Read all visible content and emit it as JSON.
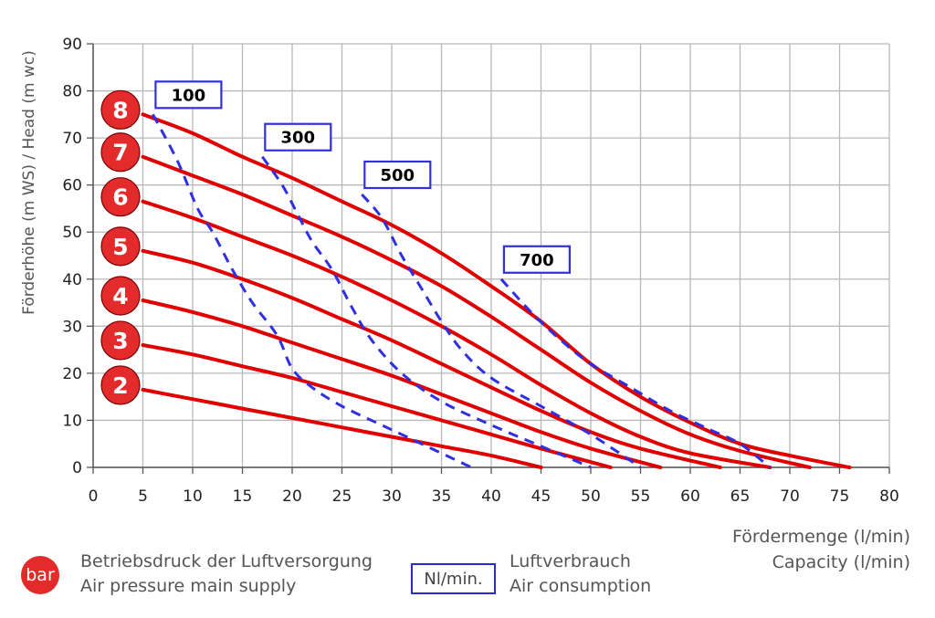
{
  "chart_data": {
    "type": "line",
    "xlabel": [
      "Fördermenge (l/min)",
      "Capacity (l/min)"
    ],
    "ylabel": "Förderhöhe (m WS) / Head (m wc)",
    "xlim": [
      0,
      80
    ],
    "ylim": [
      0,
      90
    ],
    "xticks": [
      0,
      5,
      10,
      15,
      20,
      25,
      30,
      35,
      40,
      45,
      50,
      55,
      60,
      65,
      70,
      75,
      80
    ],
    "yticks": [
      0,
      10,
      20,
      30,
      40,
      50,
      60,
      70,
      80,
      90
    ],
    "grid": true,
    "series": [
      {
        "name": "8",
        "kind": "pressure_bar",
        "color": "#e00000",
        "points": [
          [
            5,
            75
          ],
          [
            10,
            71
          ],
          [
            15,
            66
          ],
          [
            20,
            61.5
          ],
          [
            25,
            56.5
          ],
          [
            30,
            51.5
          ],
          [
            35,
            45.5
          ],
          [
            40,
            38.5
          ],
          [
            45,
            31
          ],
          [
            50,
            22
          ],
          [
            55,
            15
          ],
          [
            60,
            9.5
          ],
          [
            65,
            5
          ],
          [
            70,
            2.5
          ],
          [
            76,
            0
          ]
        ]
      },
      {
        "name": "7",
        "kind": "pressure_bar",
        "color": "#e00000",
        "points": [
          [
            5,
            66
          ],
          [
            10,
            62
          ],
          [
            15,
            58
          ],
          [
            20,
            53.5
          ],
          [
            25,
            49
          ],
          [
            30,
            44
          ],
          [
            35,
            38.5
          ],
          [
            40,
            32
          ],
          [
            45,
            25
          ],
          [
            50,
            18
          ],
          [
            55,
            12
          ],
          [
            60,
            7
          ],
          [
            65,
            3.5
          ],
          [
            72,
            0
          ]
        ]
      },
      {
        "name": "6",
        "kind": "pressure_bar",
        "color": "#e00000",
        "points": [
          [
            5,
            56.5
          ],
          [
            10,
            53
          ],
          [
            15,
            49
          ],
          [
            20,
            45
          ],
          [
            25,
            40.5
          ],
          [
            30,
            35.5
          ],
          [
            35,
            30
          ],
          [
            40,
            24
          ],
          [
            45,
            17.5
          ],
          [
            50,
            11.5
          ],
          [
            55,
            6.5
          ],
          [
            60,
            3
          ],
          [
            68,
            0
          ]
        ]
      },
      {
        "name": "5",
        "kind": "pressure_bar",
        "color": "#e00000",
        "points": [
          [
            5,
            46
          ],
          [
            10,
            43.5
          ],
          [
            15,
            40
          ],
          [
            20,
            36
          ],
          [
            25,
            31.5
          ],
          [
            30,
            27
          ],
          [
            35,
            22
          ],
          [
            40,
            17
          ],
          [
            45,
            12
          ],
          [
            50,
            7.5
          ],
          [
            55,
            4
          ],
          [
            63,
            0
          ]
        ]
      },
      {
        "name": "4",
        "kind": "pressure_bar",
        "color": "#e00000",
        "points": [
          [
            5,
            35.5
          ],
          [
            10,
            33
          ],
          [
            15,
            30
          ],
          [
            20,
            26.5
          ],
          [
            25,
            23
          ],
          [
            30,
            19.5
          ],
          [
            35,
            15.5
          ],
          [
            40,
            11.5
          ],
          [
            45,
            7.5
          ],
          [
            50,
            4
          ],
          [
            57,
            0
          ]
        ]
      },
      {
        "name": "3",
        "kind": "pressure_bar",
        "color": "#e00000",
        "points": [
          [
            5,
            26
          ],
          [
            10,
            24
          ],
          [
            15,
            21.5
          ],
          [
            20,
            19
          ],
          [
            25,
            16
          ],
          [
            30,
            13
          ],
          [
            35,
            10
          ],
          [
            40,
            7
          ],
          [
            45,
            4
          ],
          [
            52,
            0
          ]
        ]
      },
      {
        "name": "2",
        "kind": "pressure_bar",
        "color": "#e00000",
        "points": [
          [
            5,
            16.5
          ],
          [
            10,
            14.5
          ],
          [
            15,
            12.5
          ],
          [
            20,
            10.5
          ],
          [
            25,
            8.5
          ],
          [
            30,
            6.5
          ],
          [
            35,
            4.5
          ],
          [
            40,
            2.5
          ],
          [
            45,
            0
          ]
        ]
      },
      {
        "name": "100",
        "kind": "air_consumption",
        "color": "#3030e0",
        "points": [
          [
            6,
            75
          ],
          [
            8.5,
            65
          ],
          [
            10.5,
            55
          ],
          [
            12,
            50
          ],
          [
            14,
            42
          ],
          [
            16,
            35
          ],
          [
            18.5,
            28
          ],
          [
            20,
            21
          ],
          [
            22,
            17
          ],
          [
            25,
            13
          ],
          [
            30,
            8
          ],
          [
            35,
            3
          ],
          [
            38,
            0
          ]
        ]
      },
      {
        "name": "300",
        "kind": "air_consumption",
        "color": "#3030e0",
        "points": [
          [
            17,
            66
          ],
          [
            19,
            60
          ],
          [
            20.5,
            54
          ],
          [
            22,
            48
          ],
          [
            24,
            42
          ],
          [
            26,
            34
          ],
          [
            28,
            27
          ],
          [
            31,
            20
          ],
          [
            35,
            14
          ],
          [
            40,
            9
          ],
          [
            45,
            4.5
          ],
          [
            50,
            0
          ]
        ]
      },
      {
        "name": "500",
        "kind": "air_consumption",
        "color": "#3030e0",
        "points": [
          [
            27,
            58
          ],
          [
            29,
            53
          ],
          [
            31,
            45
          ],
          [
            33,
            38
          ],
          [
            35,
            31
          ],
          [
            37,
            25
          ],
          [
            40,
            19
          ],
          [
            45,
            13
          ],
          [
            50,
            7
          ],
          [
            55,
            0
          ]
        ]
      },
      {
        "name": "700",
        "kind": "air_consumption",
        "color": "#3030e0",
        "points": [
          [
            41,
            40
          ],
          [
            44,
            33
          ],
          [
            47,
            27
          ],
          [
            50,
            22
          ],
          [
            54,
            17
          ],
          [
            58,
            12
          ],
          [
            62,
            8
          ],
          [
            65,
            5
          ],
          [
            68,
            0
          ]
        ]
      }
    ],
    "pressure_badges": [
      "8",
      "7",
      "6",
      "5",
      "4",
      "3",
      "2"
    ],
    "air_labels": [
      "100",
      "300",
      "500",
      "700"
    ]
  },
  "legend": {
    "pressure_symbol": "bar",
    "pressure_de": "Betriebsdruck der Luftversorgung",
    "pressure_en": "Air pressure main supply",
    "air_symbol": "Nl/min.",
    "air_de": "Luftverbrauch",
    "air_en": "Air consumption"
  },
  "colors": {
    "pressure": "#e00000",
    "badge": "#e32b2b",
    "air": "#3030e0",
    "grid": "#b8b8b8"
  }
}
